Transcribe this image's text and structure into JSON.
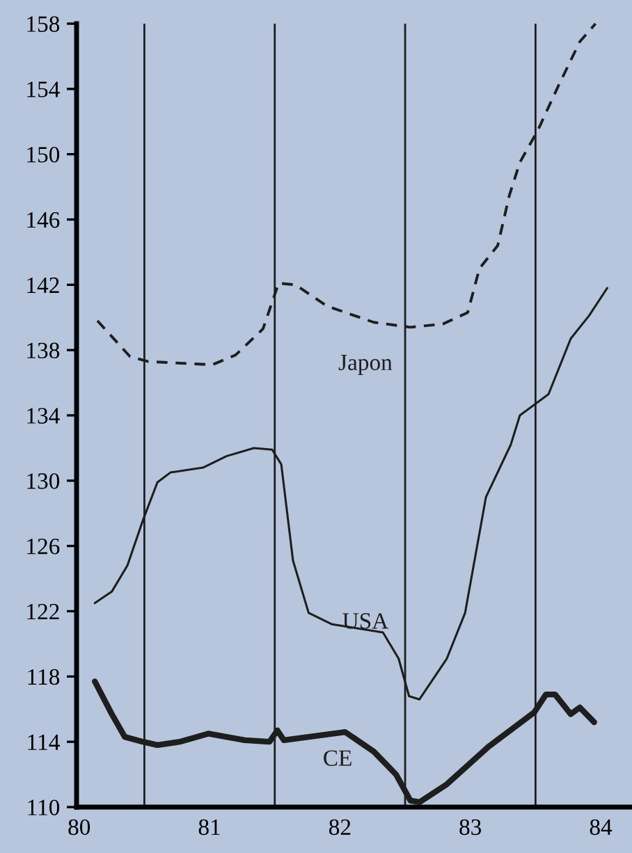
{
  "chart_data": {
    "type": "line",
    "xlim": [
      79.98,
      84.24
    ],
    "xticks": [
      80,
      81,
      82,
      83,
      84
    ],
    "ylim": [
      110,
      158
    ],
    "yticks": [
      110,
      114,
      118,
      122,
      126,
      130,
      134,
      138,
      142,
      146,
      150,
      154,
      158
    ],
    "grid": false,
    "legend": false,
    "marker": "none",
    "ref_lines": [
      {
        "axis": "x",
        "value": 80.5,
        "color": "#1e1e1e"
      },
      {
        "axis": "x",
        "value": 81.5,
        "color": "#1e1e1e"
      },
      {
        "axis": "x",
        "value": 82.5,
        "color": "#1e1e1e"
      },
      {
        "axis": "x",
        "value": 83.5,
        "color": "#1e1e1e"
      }
    ],
    "series": [
      {
        "name": "Japon",
        "color": "#1e1e1e",
        "line_style": "dashed",
        "x": [
          80.14,
          80.39,
          80.53,
          81.02,
          81.2,
          81.41,
          81.53,
          81.66,
          81.9,
          82.26,
          82.54,
          82.79,
          82.98,
          83.07,
          83.21,
          83.3,
          83.38,
          83.52,
          83.67,
          83.84,
          83.96
        ],
        "values": [
          139.8,
          137.6,
          137.3,
          137.1,
          137.7,
          139.3,
          142.1,
          142.0,
          140.7,
          139.7,
          139.4,
          139.6,
          140.3,
          143.0,
          144.4,
          147.5,
          149.5,
          151.5,
          154.1,
          156.9,
          158.0
        ]
      },
      {
        "name": "USA",
        "color": "#1e1e1e",
        "line_style": "solid",
        "x": [
          80.12,
          80.25,
          80.37,
          80.49,
          80.6,
          80.7,
          80.95,
          81.13,
          81.34,
          81.48,
          81.55,
          81.64,
          81.76,
          81.94,
          82.33,
          82.45,
          82.53,
          82.61,
          82.82,
          82.96,
          83.12,
          83.31,
          83.38,
          83.6,
          83.77,
          83.91,
          84.05
        ],
        "values": [
          122.5,
          123.2,
          124.8,
          127.6,
          129.9,
          130.5,
          130.8,
          131.5,
          132.0,
          131.9,
          131.0,
          125.1,
          121.9,
          121.2,
          120.7,
          119.1,
          116.8,
          116.6,
          119.1,
          121.9,
          129.0,
          132.2,
          134.0,
          135.3,
          138.7,
          140.1,
          141.8
        ]
      },
      {
        "name": "CE",
        "color": "#1e1e1e",
        "line_style": "solid",
        "x": [
          80.12,
          80.25,
          80.35,
          80.49,
          80.6,
          80.77,
          80.99,
          81.27,
          81.46,
          81.52,
          81.57,
          82.04,
          82.26,
          82.43,
          82.54,
          82.61,
          82.82,
          83.14,
          83.49,
          83.58,
          83.65,
          83.77,
          83.84,
          83.95
        ],
        "values": [
          117.7,
          115.7,
          114.3,
          114.0,
          113.8,
          114.0,
          114.5,
          114.1,
          114.0,
          114.7,
          114.1,
          114.6,
          113.4,
          112.0,
          110.4,
          110.3,
          111.4,
          113.7,
          115.8,
          116.9,
          116.9,
          115.7,
          116.1,
          115.2
        ]
      }
    ]
  }
}
